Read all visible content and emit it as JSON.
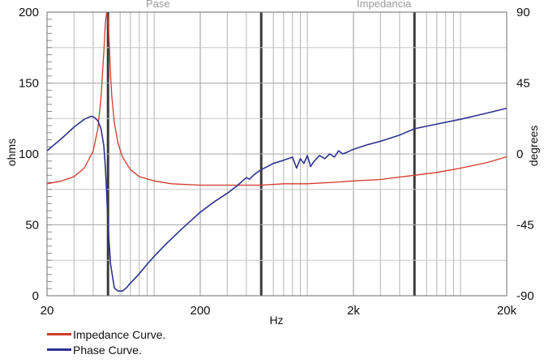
{
  "chart_data": {
    "type": "line",
    "header_labels": [
      "Pase",
      "Impedancia"
    ],
    "xlabel": "Hz",
    "ylabel_left": "ohms",
    "ylabel_right": "degrees",
    "x_scale": "log",
    "xlim": [
      20,
      20000
    ],
    "ylim_left": [
      0,
      200
    ],
    "ylim_right": [
      -90,
      90
    ],
    "x_ticks": [
      {
        "value": 20,
        "label": "20"
      },
      {
        "value": 200,
        "label": "200"
      },
      {
        "value": 2000,
        "label": "2k"
      },
      {
        "value": 20000,
        "label": "20k"
      }
    ],
    "y_ticks_left": [
      0,
      50,
      100,
      150,
      200
    ],
    "y_ticks_right": [
      -90,
      -45,
      0,
      45,
      90
    ],
    "grid": true,
    "legend_position": "bottom-left",
    "series": [
      {
        "name": "Impedance Curve.",
        "axis": "left",
        "color": "#d03a2a",
        "x": [
          20,
          25,
          30,
          35,
          40,
          43,
          45,
          47,
          48,
          49,
          50,
          51,
          52,
          53,
          55,
          58,
          62,
          70,
          80,
          100,
          130,
          200,
          300,
          500,
          700,
          1000,
          1500,
          2000,
          3000,
          5000,
          7000,
          10000,
          15000,
          20000
        ],
        "y": [
          79,
          81,
          84,
          90,
          102,
          118,
          140,
          172,
          192,
          200,
          196,
          178,
          155,
          140,
          122,
          108,
          98,
          89,
          84,
          81,
          79,
          78,
          78,
          78,
          79,
          79,
          80,
          81,
          82,
          85,
          87,
          90,
          94,
          98
        ]
      },
      {
        "name": "Phase Curve.",
        "axis": "right",
        "color": "#2e3190",
        "x": [
          20,
          25,
          30,
          35,
          39,
          41,
          43,
          45,
          47,
          48,
          49,
          50,
          52,
          55,
          58,
          62,
          66,
          70,
          75,
          80,
          90,
          100,
          120,
          150,
          180,
          200,
          250,
          300,
          350,
          400,
          420,
          450,
          500,
          600,
          700,
          800,
          850,
          900,
          950,
          1000,
          1050,
          1100,
          1200,
          1300,
          1400,
          1500,
          1600,
          1700,
          1800,
          2000,
          2500,
          3000,
          4000,
          5000,
          7000,
          10000,
          15000,
          20000
        ],
        "y": [
          2,
          10,
          17,
          22,
          24,
          23,
          21,
          16,
          5,
          -8,
          -25,
          -45,
          -70,
          -85,
          -87,
          -87,
          -85,
          -82,
          -79,
          -76,
          -70,
          -65,
          -57,
          -48,
          -41,
          -37,
          -30,
          -25,
          -20,
          -15,
          -16,
          -13,
          -10,
          -6,
          -4,
          -2,
          -9,
          -3,
          -6,
          -1,
          -8,
          -5,
          -1,
          -3,
          0,
          -2,
          2,
          0,
          1,
          3,
          6,
          8,
          12,
          16,
          19,
          22,
          26,
          29
        ]
      }
    ]
  }
}
